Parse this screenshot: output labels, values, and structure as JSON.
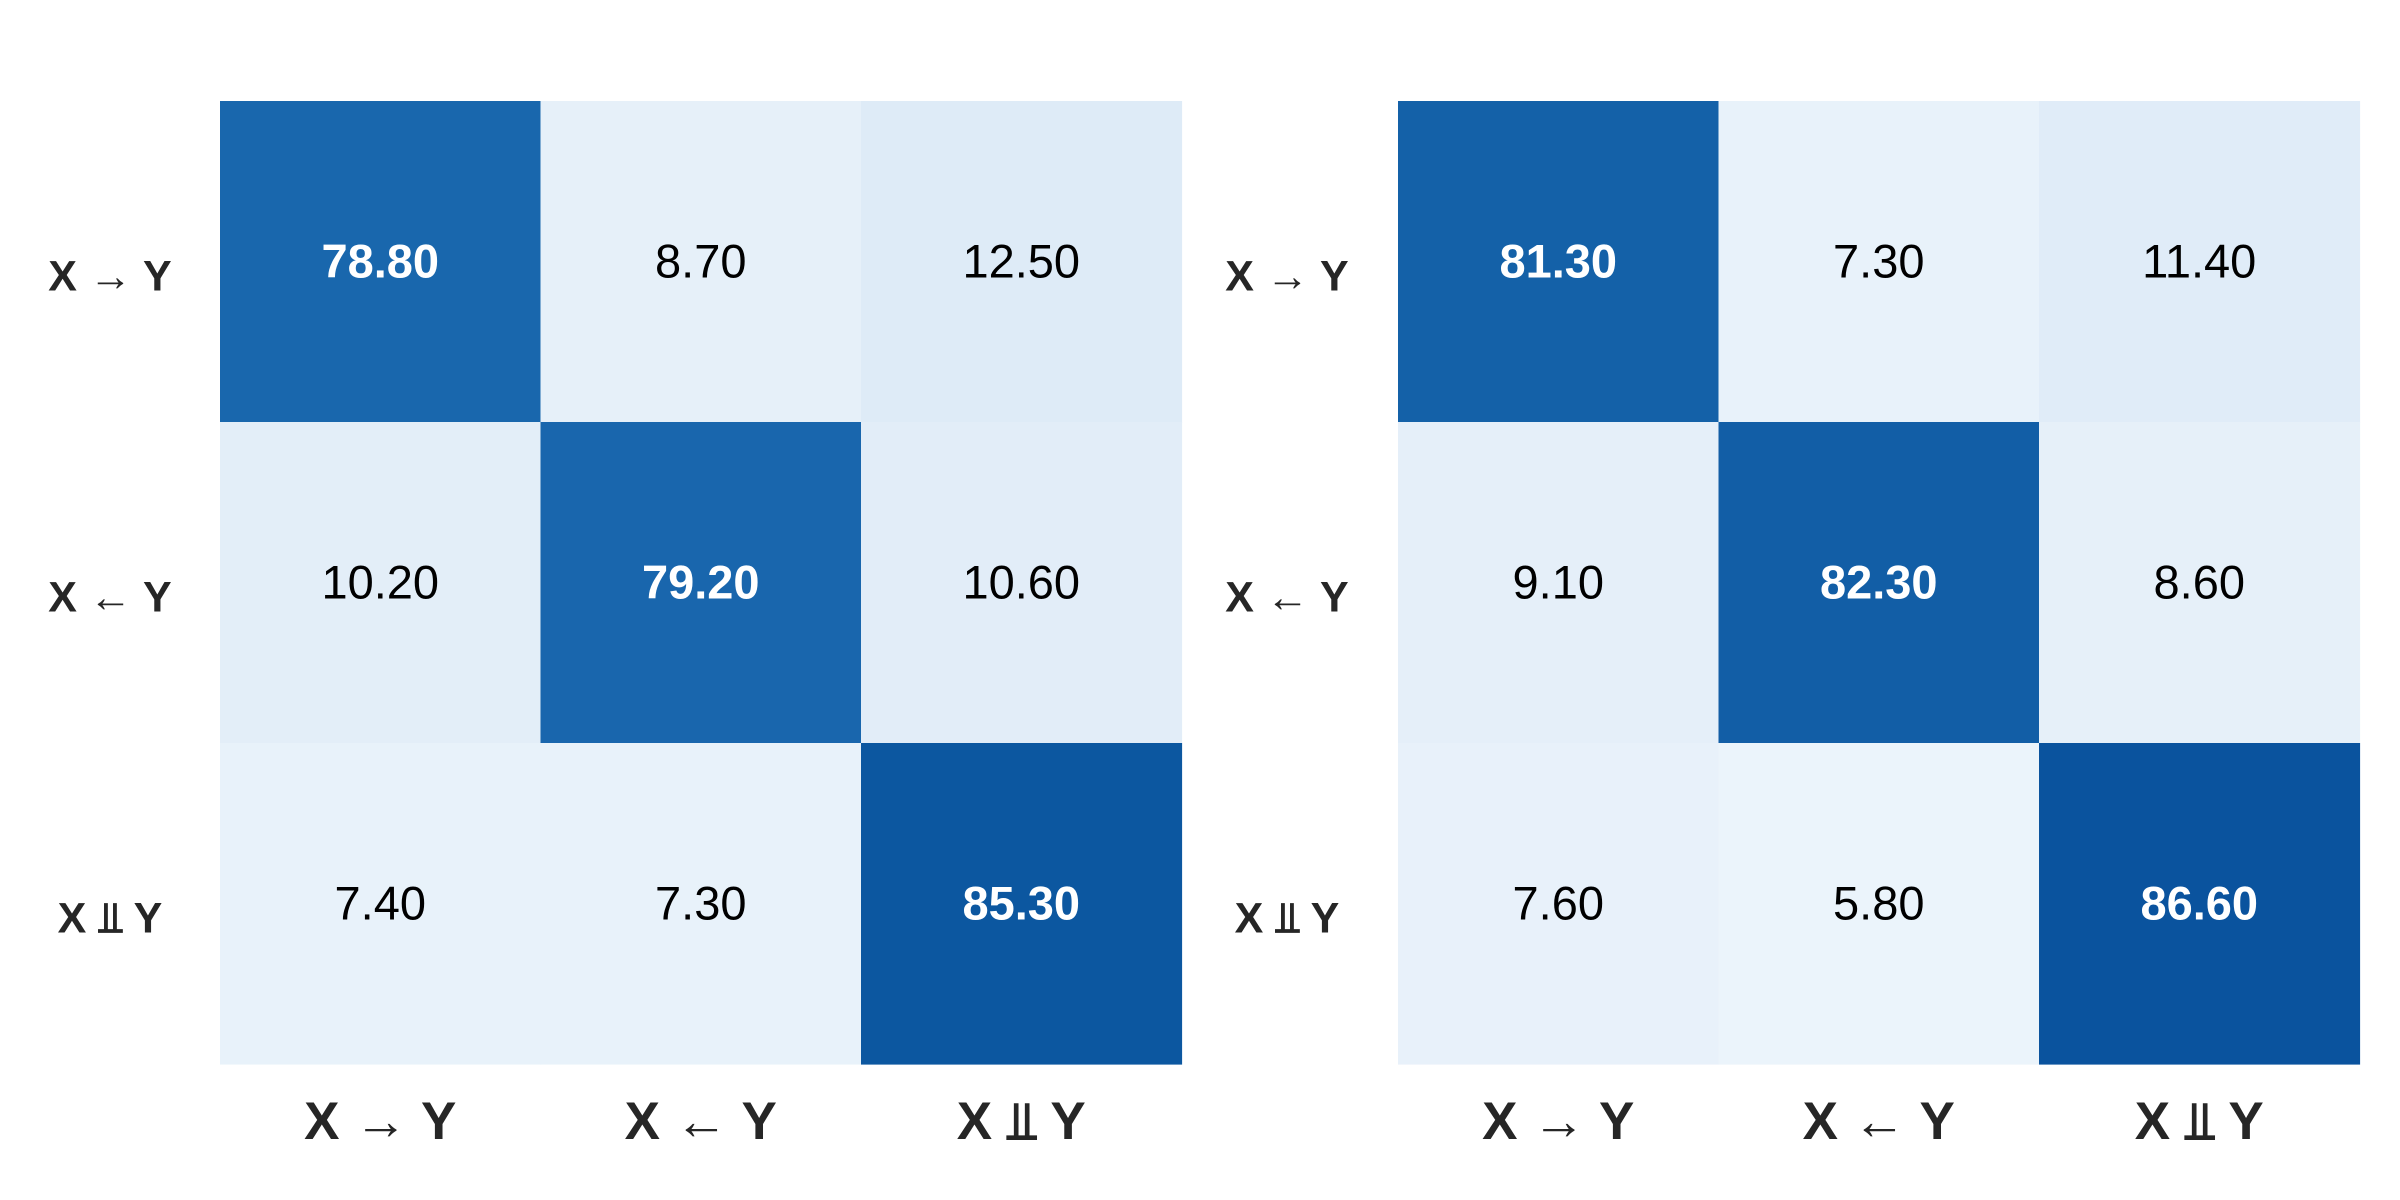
{
  "chart_data": [
    {
      "type": "heatmap",
      "title": "",
      "xlabel": "",
      "ylabel": "",
      "x_tick_labels": [
        "X → Y",
        "X ← Y",
        "X ⫫ Y"
      ],
      "y_tick_labels": [
        "X → Y",
        "X ← Y",
        "X ⫫ Y"
      ],
      "values": [
        [
          78.8,
          8.7,
          12.5
        ],
        [
          10.2,
          79.2,
          10.6
        ],
        [
          7.4,
          7.3,
          85.3
        ]
      ],
      "value_labels": [
        [
          "78.80",
          "8.70",
          "12.50"
        ],
        [
          "10.20",
          "79.20",
          "10.60"
        ],
        [
          "7.40",
          "7.30",
          "85.30"
        ]
      ],
      "colormap": "Blues",
      "vmin": 0,
      "vmax": 100,
      "colorbar": false,
      "grid": false
    },
    {
      "type": "heatmap",
      "title": "",
      "xlabel": "",
      "ylabel": "",
      "x_tick_labels": [
        "X → Y",
        "X ← Y",
        "X ⫫ Y"
      ],
      "y_tick_labels": [
        "X → Y",
        "X ← Y",
        "X ⫫ Y"
      ],
      "values": [
        [
          81.3,
          7.3,
          11.4
        ],
        [
          9.1,
          82.3,
          8.6
        ],
        [
          7.6,
          5.8,
          86.6
        ]
      ],
      "value_labels": [
        [
          "81.30",
          "7.30",
          "11.40"
        ],
        [
          "9.10",
          "82.30",
          "8.60"
        ],
        [
          "7.60",
          "5.80",
          "86.60"
        ]
      ],
      "colormap": "Blues",
      "vmin": 0,
      "vmax": 100,
      "colorbar": false,
      "grid": false
    }
  ],
  "colors": {
    "text_on_light": "#000000",
    "text_on_dark": "#ffffff",
    "tick_text": "#262626"
  }
}
